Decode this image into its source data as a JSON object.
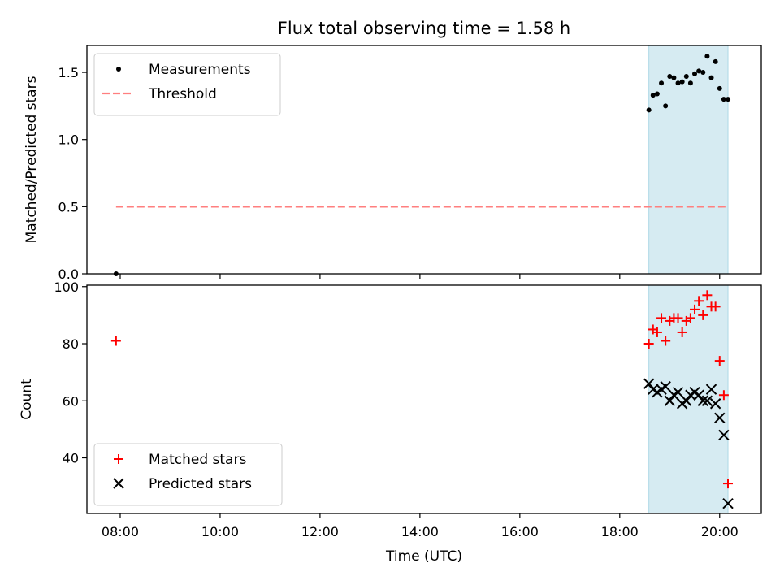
{
  "chart_data": {
    "title": "Flux total observing time = 1.58 h",
    "x_axis": {
      "label": "Time (UTC)",
      "unit": "hours UTC",
      "range": [
        "07:20",
        "20:50"
      ],
      "ticks": [
        "08:00",
        "10:00",
        "12:00",
        "14:00",
        "16:00",
        "18:00",
        "20:00"
      ]
    },
    "observing_span": [
      "18:35",
      "20:10"
    ],
    "panels": [
      {
        "type": "scatter",
        "ylabel": "Matched/Predicted stars",
        "ylim": [
          0,
          1.7
        ],
        "yticks": [
          "0.0",
          "0.5",
          "1.0",
          "1.5"
        ],
        "legend_position": "upper-left",
        "series": [
          {
            "name": "Measurements",
            "marker": "dot",
            "color": "#000000",
            "points": [
              [
                "07:55",
                0.0
              ],
              [
                "18:35",
                1.22
              ],
              [
                "18:40",
                1.33
              ],
              [
                "18:45",
                1.34
              ],
              [
                "18:50",
                1.42
              ],
              [
                "18:55",
                1.25
              ],
              [
                "19:00",
                1.47
              ],
              [
                "19:05",
                1.46
              ],
              [
                "19:10",
                1.42
              ],
              [
                "19:15",
                1.43
              ],
              [
                "19:20",
                1.47
              ],
              [
                "19:25",
                1.42
              ],
              [
                "19:30",
                1.49
              ],
              [
                "19:35",
                1.51
              ],
              [
                "19:40",
                1.5
              ],
              [
                "19:45",
                1.62
              ],
              [
                "19:50",
                1.46
              ],
              [
                "19:55",
                1.58
              ],
              [
                "20:00",
                1.38
              ],
              [
                "20:05",
                1.3
              ],
              [
                "20:10",
                1.3
              ]
            ]
          },
          {
            "name": "Threshold",
            "type": "line",
            "style": "dashed",
            "color": "#ff7f7f",
            "points": [
              [
                "07:55",
                0.5
              ],
              [
                "20:10",
                0.5
              ]
            ]
          }
        ]
      },
      {
        "type": "scatter",
        "ylabel": "Count",
        "ylim": [
          20.5,
          100.5
        ],
        "yticks": [
          "40",
          "60",
          "80",
          "100"
        ],
        "legend_position": "lower-left",
        "series": [
          {
            "name": "Matched stars",
            "marker": "plus",
            "color": "#ff0000",
            "points": [
              [
                "07:55",
                81
              ],
              [
                "18:35",
                80
              ],
              [
                "18:40",
                85
              ],
              [
                "18:45",
                84
              ],
              [
                "18:50",
                89
              ],
              [
                "18:55",
                81
              ],
              [
                "19:00",
                88
              ],
              [
                "19:05",
                89
              ],
              [
                "19:10",
                89
              ],
              [
                "19:15",
                84
              ],
              [
                "19:20",
                88
              ],
              [
                "19:25",
                89
              ],
              [
                "19:30",
                92
              ],
              [
                "19:35",
                95
              ],
              [
                "19:40",
                90
              ],
              [
                "19:45",
                97
              ],
              [
                "19:50",
                93
              ],
              [
                "19:55",
                93
              ],
              [
                "20:00",
                74
              ],
              [
                "20:05",
                62
              ],
              [
                "20:10",
                31
              ]
            ]
          },
          {
            "name": "Predicted stars",
            "marker": "x",
            "color": "#000000",
            "points": [
              [
                "18:35",
                66
              ],
              [
                "18:40",
                64
              ],
              [
                "18:45",
                63
              ],
              [
                "18:50",
                64
              ],
              [
                "18:55",
                65
              ],
              [
                "19:00",
                60
              ],
              [
                "19:05",
                62
              ],
              [
                "19:10",
                63
              ],
              [
                "19:15",
                59
              ],
              [
                "19:20",
                60
              ],
              [
                "19:25",
                62
              ],
              [
                "19:30",
                63
              ],
              [
                "19:35",
                62
              ],
              [
                "19:40",
                60
              ],
              [
                "19:45",
                60
              ],
              [
                "19:50",
                64
              ],
              [
                "19:55",
                59
              ],
              [
                "20:00",
                54
              ],
              [
                "20:05",
                48
              ],
              [
                "20:10",
                24
              ]
            ]
          }
        ]
      }
    ]
  }
}
